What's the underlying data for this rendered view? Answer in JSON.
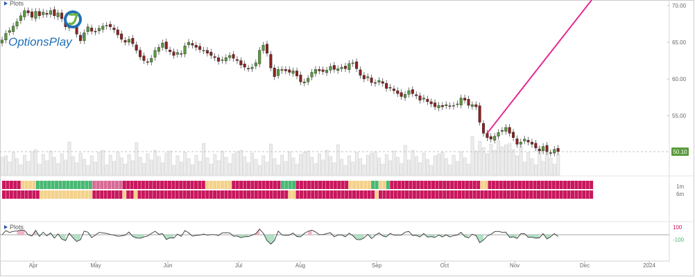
{
  "panel_top": {
    "title": "Plots"
  },
  "panel_bottom": {
    "title": "Plots"
  },
  "logo": {
    "text": "OptionsPlay",
    "mark": "registered"
  },
  "price_badge": {
    "value": "50.10"
  },
  "heat_labels": {
    "row1": "1m",
    "row2": "6m"
  },
  "osc_labels": {
    "upper": "100",
    "lower": "-100"
  },
  "chart_data": {
    "type": "candlestick",
    "y_ticks": [
      "70.00",
      "65.00",
      "60.00",
      "55.00"
    ],
    "ylim": [
      47.5,
      70.5
    ],
    "x_ticks": [
      "Apr",
      "May",
      "Jun",
      "Jul",
      "Aug",
      "Sep",
      "Oct",
      "Nov",
      "Dec",
      "2024"
    ],
    "last_price": 50.1,
    "daily_close": [
      65.3,
      66.2,
      66.6,
      67.2,
      67.8,
      68.6,
      69.3,
      69.0,
      68.4,
      69.2,
      68.6,
      69.1,
      68.8,
      69.3,
      68.6,
      69.0,
      68.2,
      67.1,
      67.8,
      67.4,
      66.1,
      65.2,
      66.3,
      67.1,
      66.5,
      66.4,
      66.9,
      67.2,
      67.3,
      67.1,
      66.7,
      66.0,
      65.4,
      65.0,
      65.4,
      64.8,
      63.9,
      63.0,
      62.5,
      62.3,
      62.8,
      63.9,
      64.3,
      64.9,
      64.1,
      63.7,
      63.2,
      63.6,
      63.4,
      64.5,
      65.0,
      64.6,
      64.3,
      64.0,
      63.9,
      63.5,
      63.2,
      62.9,
      62.4,
      62.6,
      62.9,
      63.2,
      62.8,
      62.5,
      61.9,
      61.6,
      61.4,
      61.6,
      62.2,
      63.9,
      64.6,
      63.5,
      61.5,
      60.3,
      61.3,
      61.3,
      61.1,
      60.9,
      61.1,
      60.4,
      59.6,
      59.6,
      60.1,
      60.9,
      61.3,
      61.1,
      61.0,
      61.2,
      61.7,
      61.3,
      61.4,
      61.6,
      61.4,
      62.1,
      62.2,
      61.4,
      60.5,
      60.0,
      60.3,
      59.5,
      59.4,
      59.8,
      59.4,
      58.7,
      58.8,
      58.4,
      58.0,
      57.6,
      57.9,
      58.4,
      58.0,
      57.7,
      57.1,
      57.4,
      56.9,
      56.6,
      56.2,
      56.4,
      56.2,
      56.5,
      56.3,
      56.4,
      56.6,
      57.4,
      57.1,
      56.4,
      56.5,
      56.2,
      54.1,
      52.6,
      52.0,
      51.8,
      52.2,
      52.7,
      53.0,
      53.4,
      52.6,
      52.0,
      51.1,
      51.4,
      51.8,
      51.4,
      51.1,
      50.6,
      50.2,
      50.8,
      50.1,
      49.9,
      50.4,
      50.1
    ],
    "trendline": {
      "color": "#e6288f",
      "from_index": 130,
      "to_index": 158
    },
    "heatmap_rows": [
      "1m",
      "6m"
    ],
    "oscillator": {
      "upper_band": 100,
      "lower_band": -100
    }
  },
  "colors": {
    "up": "#5a9a3c",
    "down": "#8b2323",
    "heat_red": "#c8175d",
    "heat_green": "#48b873",
    "heat_yellow": "#f4d28a",
    "trend": "#e6288f",
    "panel_tab": "#2a5db0"
  }
}
